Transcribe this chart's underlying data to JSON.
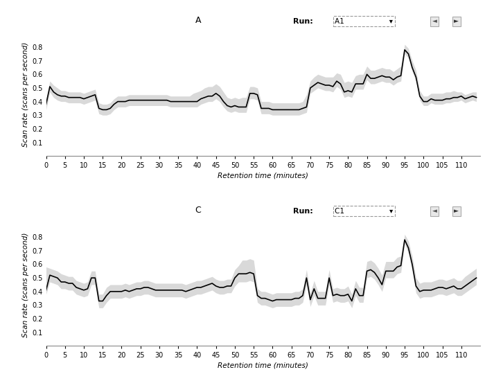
{
  "panel_A_title": "A",
  "panel_C_title": "C",
  "run_A_label": "A1",
  "run_C_label": "C1",
  "xlabel": "Retention time (minutes)",
  "ylabel": "Scan rate (scans per second)",
  "xlim": [
    0,
    115
  ],
  "ylim": [
    0,
    0.9
  ],
  "yticks": [
    0,
    0.1,
    0.2,
    0.3,
    0.4,
    0.5,
    0.6,
    0.7,
    0.8
  ],
  "xticks": [
    0,
    5,
    10,
    15,
    20,
    25,
    30,
    35,
    40,
    45,
    50,
    55,
    60,
    65,
    70,
    75,
    80,
    85,
    90,
    95,
    100,
    105,
    110
  ],
  "bg_color": "#ffffff",
  "plot_bg": "#ffffff",
  "line_color": "#000000",
  "band_color": "#c0c0c0",
  "band_alpha": 0.6,
  "line_width": 1.2,
  "panel_A_x": [
    0,
    1,
    2,
    3,
    4,
    5,
    6,
    7,
    8,
    9,
    10,
    11,
    12,
    13,
    14,
    15,
    16,
    17,
    18,
    19,
    20,
    21,
    22,
    23,
    24,
    25,
    26,
    27,
    28,
    29,
    30,
    31,
    32,
    33,
    34,
    35,
    36,
    37,
    38,
    39,
    40,
    41,
    42,
    43,
    44,
    45,
    46,
    47,
    48,
    49,
    50,
    51,
    52,
    53,
    54,
    55,
    56,
    57,
    58,
    59,
    60,
    61,
    62,
    63,
    64,
    65,
    66,
    67,
    68,
    69,
    70,
    71,
    72,
    73,
    74,
    75,
    76,
    77,
    78,
    79,
    80,
    81,
    82,
    83,
    84,
    85,
    86,
    87,
    88,
    89,
    90,
    91,
    92,
    93,
    94,
    95,
    96,
    97,
    98,
    99,
    100,
    101,
    102,
    103,
    104,
    105,
    106,
    107,
    108,
    109,
    110,
    111,
    112,
    113,
    114
  ],
  "panel_A_y": [
    0.38,
    0.51,
    0.47,
    0.45,
    0.44,
    0.44,
    0.43,
    0.43,
    0.43,
    0.43,
    0.42,
    0.43,
    0.44,
    0.45,
    0.35,
    0.34,
    0.34,
    0.35,
    0.38,
    0.4,
    0.4,
    0.4,
    0.41,
    0.41,
    0.41,
    0.41,
    0.41,
    0.41,
    0.41,
    0.41,
    0.41,
    0.41,
    0.41,
    0.4,
    0.4,
    0.4,
    0.4,
    0.4,
    0.4,
    0.4,
    0.4,
    0.42,
    0.43,
    0.44,
    0.44,
    0.46,
    0.44,
    0.4,
    0.37,
    0.36,
    0.37,
    0.36,
    0.36,
    0.36,
    0.46,
    0.46,
    0.45,
    0.35,
    0.35,
    0.35,
    0.34,
    0.34,
    0.34,
    0.34,
    0.34,
    0.34,
    0.34,
    0.34,
    0.35,
    0.36,
    0.5,
    0.52,
    0.54,
    0.53,
    0.52,
    0.52,
    0.51,
    0.55,
    0.53,
    0.47,
    0.48,
    0.47,
    0.53,
    0.53,
    0.53,
    0.6,
    0.57,
    0.57,
    0.58,
    0.59,
    0.58,
    0.58,
    0.56,
    0.58,
    0.59,
    0.78,
    0.75,
    0.65,
    0.58,
    0.44,
    0.4,
    0.4,
    0.42,
    0.41,
    0.41,
    0.41,
    0.42,
    0.42,
    0.43,
    0.43,
    0.44,
    0.42,
    0.43,
    0.44,
    0.43
  ],
  "panel_A_upper": [
    0.42,
    0.55,
    0.52,
    0.5,
    0.48,
    0.48,
    0.47,
    0.47,
    0.47,
    0.47,
    0.46,
    0.47,
    0.48,
    0.49,
    0.39,
    0.38,
    0.38,
    0.39,
    0.42,
    0.44,
    0.44,
    0.44,
    0.45,
    0.45,
    0.45,
    0.45,
    0.45,
    0.45,
    0.45,
    0.45,
    0.45,
    0.45,
    0.45,
    0.44,
    0.44,
    0.44,
    0.44,
    0.44,
    0.44,
    0.46,
    0.47,
    0.48,
    0.5,
    0.51,
    0.51,
    0.53,
    0.51,
    0.47,
    0.43,
    0.42,
    0.43,
    0.42,
    0.43,
    0.43,
    0.51,
    0.51,
    0.5,
    0.4,
    0.4,
    0.4,
    0.39,
    0.39,
    0.39,
    0.39,
    0.39,
    0.39,
    0.39,
    0.39,
    0.4,
    0.45,
    0.55,
    0.58,
    0.6,
    0.59,
    0.58,
    0.58,
    0.58,
    0.61,
    0.6,
    0.54,
    0.55,
    0.54,
    0.59,
    0.6,
    0.6,
    0.66,
    0.63,
    0.63,
    0.64,
    0.65,
    0.64,
    0.64,
    0.62,
    0.64,
    0.66,
    0.82,
    0.79,
    0.7,
    0.63,
    0.48,
    0.44,
    0.44,
    0.46,
    0.46,
    0.46,
    0.46,
    0.47,
    0.47,
    0.48,
    0.47,
    0.47,
    0.45,
    0.46,
    0.47,
    0.47
  ],
  "panel_A_lower": [
    0.34,
    0.47,
    0.43,
    0.41,
    0.4,
    0.4,
    0.39,
    0.39,
    0.39,
    0.39,
    0.38,
    0.39,
    0.4,
    0.41,
    0.31,
    0.3,
    0.3,
    0.31,
    0.34,
    0.36,
    0.36,
    0.36,
    0.37,
    0.37,
    0.37,
    0.37,
    0.37,
    0.37,
    0.37,
    0.37,
    0.37,
    0.37,
    0.37,
    0.36,
    0.36,
    0.36,
    0.36,
    0.36,
    0.36,
    0.36,
    0.36,
    0.38,
    0.39,
    0.4,
    0.4,
    0.42,
    0.4,
    0.36,
    0.33,
    0.32,
    0.33,
    0.32,
    0.32,
    0.32,
    0.42,
    0.42,
    0.41,
    0.31,
    0.31,
    0.31,
    0.3,
    0.3,
    0.3,
    0.3,
    0.3,
    0.3,
    0.3,
    0.3,
    0.31,
    0.32,
    0.46,
    0.48,
    0.5,
    0.49,
    0.48,
    0.48,
    0.47,
    0.51,
    0.49,
    0.43,
    0.44,
    0.43,
    0.49,
    0.49,
    0.49,
    0.56,
    0.53,
    0.53,
    0.54,
    0.55,
    0.54,
    0.54,
    0.52,
    0.54,
    0.55,
    0.75,
    0.72,
    0.62,
    0.55,
    0.41,
    0.37,
    0.37,
    0.39,
    0.38,
    0.38,
    0.38,
    0.39,
    0.39,
    0.4,
    0.4,
    0.41,
    0.39,
    0.4,
    0.41,
    0.4
  ],
  "panel_C_x": [
    0,
    1,
    2,
    3,
    4,
    5,
    6,
    7,
    8,
    9,
    10,
    11,
    12,
    13,
    14,
    15,
    16,
    17,
    18,
    19,
    20,
    21,
    22,
    23,
    24,
    25,
    26,
    27,
    28,
    29,
    30,
    31,
    32,
    33,
    34,
    35,
    36,
    37,
    38,
    39,
    40,
    41,
    42,
    43,
    44,
    45,
    46,
    47,
    48,
    49,
    50,
    51,
    52,
    53,
    54,
    55,
    56,
    57,
    58,
    59,
    60,
    61,
    62,
    63,
    64,
    65,
    66,
    67,
    68,
    69,
    70,
    71,
    72,
    73,
    74,
    75,
    76,
    77,
    78,
    79,
    80,
    81,
    82,
    83,
    84,
    85,
    86,
    87,
    88,
    89,
    90,
    91,
    92,
    93,
    94,
    95,
    96,
    97,
    98,
    99,
    100,
    101,
    102,
    103,
    104,
    105,
    106,
    107,
    108,
    109,
    110,
    111,
    112,
    113,
    114
  ],
  "panel_C_y": [
    0.41,
    0.52,
    0.51,
    0.5,
    0.47,
    0.47,
    0.46,
    0.46,
    0.43,
    0.42,
    0.41,
    0.42,
    0.5,
    0.5,
    0.33,
    0.33,
    0.37,
    0.4,
    0.4,
    0.4,
    0.4,
    0.41,
    0.4,
    0.41,
    0.42,
    0.42,
    0.43,
    0.43,
    0.42,
    0.41,
    0.41,
    0.41,
    0.41,
    0.41,
    0.41,
    0.41,
    0.41,
    0.4,
    0.41,
    0.42,
    0.43,
    0.43,
    0.44,
    0.45,
    0.46,
    0.44,
    0.43,
    0.43,
    0.44,
    0.44,
    0.5,
    0.53,
    0.53,
    0.53,
    0.54,
    0.53,
    0.37,
    0.35,
    0.35,
    0.34,
    0.33,
    0.34,
    0.34,
    0.34,
    0.34,
    0.34,
    0.35,
    0.35,
    0.37,
    0.5,
    0.34,
    0.42,
    0.35,
    0.35,
    0.35,
    0.5,
    0.37,
    0.38,
    0.37,
    0.37,
    0.38,
    0.33,
    0.42,
    0.37,
    0.37,
    0.55,
    0.56,
    0.54,
    0.5,
    0.45,
    0.55,
    0.55,
    0.55,
    0.58,
    0.59,
    0.78,
    0.72,
    0.6,
    0.44,
    0.4,
    0.41,
    0.41,
    0.41,
    0.42,
    0.43,
    0.43,
    0.42,
    0.43,
    0.44,
    0.42,
    0.42,
    0.44,
    0.46,
    0.48,
    0.5
  ],
  "panel_C_upper": [
    0.58,
    0.57,
    0.56,
    0.55,
    0.53,
    0.52,
    0.51,
    0.51,
    0.48,
    0.47,
    0.46,
    0.47,
    0.55,
    0.55,
    0.38,
    0.38,
    0.43,
    0.45,
    0.45,
    0.45,
    0.45,
    0.46,
    0.45,
    0.46,
    0.47,
    0.47,
    0.48,
    0.48,
    0.47,
    0.46,
    0.46,
    0.46,
    0.46,
    0.46,
    0.46,
    0.46,
    0.46,
    0.45,
    0.46,
    0.47,
    0.48,
    0.48,
    0.49,
    0.5,
    0.51,
    0.49,
    0.48,
    0.48,
    0.49,
    0.49,
    0.56,
    0.59,
    0.63,
    0.63,
    0.64,
    0.63,
    0.42,
    0.4,
    0.4,
    0.39,
    0.38,
    0.39,
    0.39,
    0.39,
    0.39,
    0.39,
    0.4,
    0.4,
    0.42,
    0.56,
    0.39,
    0.48,
    0.4,
    0.4,
    0.4,
    0.56,
    0.42,
    0.43,
    0.42,
    0.42,
    0.44,
    0.38,
    0.48,
    0.43,
    0.43,
    0.62,
    0.63,
    0.61,
    0.57,
    0.52,
    0.62,
    0.62,
    0.62,
    0.65,
    0.66,
    0.82,
    0.77,
    0.66,
    0.5,
    0.46,
    0.47,
    0.47,
    0.47,
    0.48,
    0.49,
    0.49,
    0.48,
    0.49,
    0.5,
    0.48,
    0.48,
    0.51,
    0.53,
    0.55,
    0.57
  ],
  "panel_C_lower": [
    0.38,
    0.47,
    0.46,
    0.45,
    0.42,
    0.42,
    0.41,
    0.41,
    0.38,
    0.37,
    0.36,
    0.37,
    0.45,
    0.45,
    0.28,
    0.28,
    0.32,
    0.35,
    0.35,
    0.35,
    0.35,
    0.36,
    0.35,
    0.36,
    0.37,
    0.37,
    0.38,
    0.38,
    0.37,
    0.36,
    0.36,
    0.36,
    0.36,
    0.36,
    0.36,
    0.36,
    0.36,
    0.35,
    0.36,
    0.37,
    0.38,
    0.38,
    0.39,
    0.4,
    0.41,
    0.39,
    0.38,
    0.38,
    0.39,
    0.39,
    0.44,
    0.47,
    0.47,
    0.47,
    0.48,
    0.47,
    0.32,
    0.3,
    0.3,
    0.29,
    0.28,
    0.29,
    0.29,
    0.29,
    0.29,
    0.29,
    0.3,
    0.3,
    0.32,
    0.45,
    0.29,
    0.37,
    0.3,
    0.3,
    0.3,
    0.45,
    0.32,
    0.33,
    0.32,
    0.32,
    0.33,
    0.28,
    0.37,
    0.32,
    0.32,
    0.5,
    0.51,
    0.49,
    0.45,
    0.4,
    0.5,
    0.5,
    0.5,
    0.53,
    0.54,
    0.75,
    0.68,
    0.55,
    0.39,
    0.35,
    0.36,
    0.36,
    0.36,
    0.37,
    0.38,
    0.38,
    0.37,
    0.38,
    0.39,
    0.37,
    0.37,
    0.39,
    0.41,
    0.43,
    0.45
  ]
}
